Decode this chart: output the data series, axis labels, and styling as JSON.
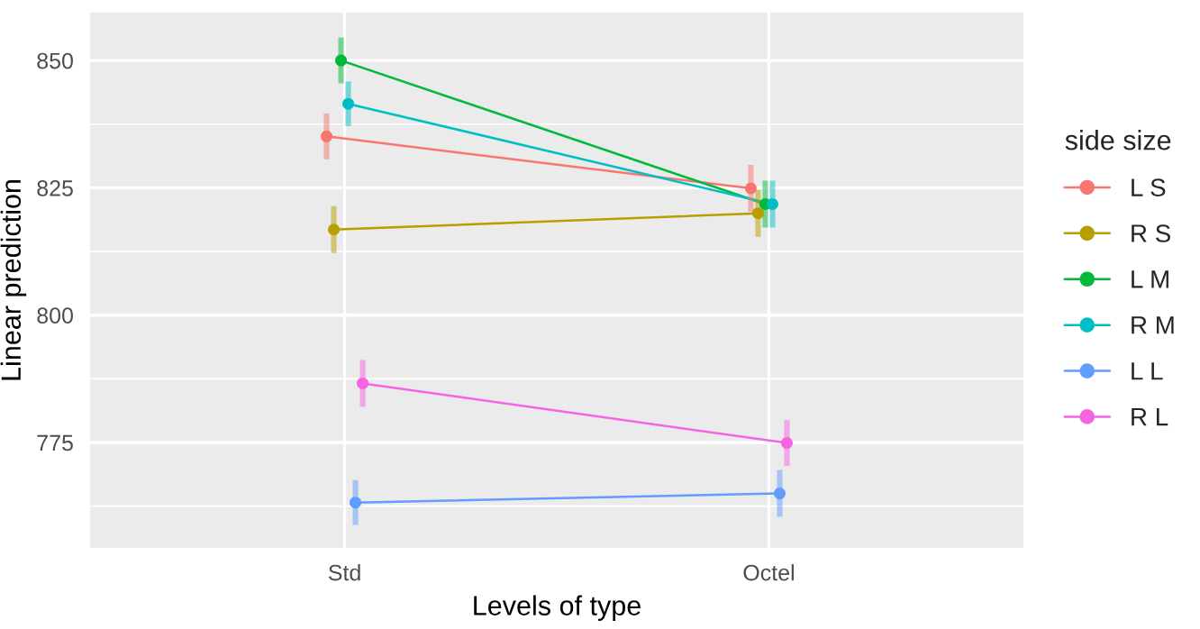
{
  "chart_data": {
    "type": "line",
    "xlabel": "Levels of type",
    "ylabel": "Linear prediction",
    "legend_title": "side size",
    "categories": [
      "Std",
      "Octel"
    ],
    "ylim": [
      754.3,
      859.4
    ],
    "yticks": [
      775,
      800,
      825,
      850
    ],
    "grid": true,
    "legend": "right",
    "marker": "circle",
    "line_style": "solid",
    "series": [
      {
        "name": "L S",
        "color": "#f8766d",
        "values": [
          835.1,
          824.9
        ],
        "errors": [
          4.5,
          4.6
        ]
      },
      {
        "name": "R S",
        "color": "#b79f00",
        "values": [
          816.8,
          820.0
        ],
        "errors": [
          4.6,
          4.6
        ]
      },
      {
        "name": "L M",
        "color": "#00ba38",
        "values": [
          850.0,
          821.8
        ],
        "errors": [
          4.5,
          4.6
        ]
      },
      {
        "name": "R M",
        "color": "#00bfc4",
        "values": [
          841.5,
          821.8
        ],
        "errors": [
          4.4,
          4.6
        ]
      },
      {
        "name": "L L",
        "color": "#619cff",
        "values": [
          763.2,
          765.0
        ],
        "errors": [
          4.4,
          4.6
        ]
      },
      {
        "name": "R L",
        "color": "#f564e3",
        "values": [
          786.6,
          774.9
        ],
        "errors": [
          4.6,
          4.5
        ]
      }
    ]
  }
}
